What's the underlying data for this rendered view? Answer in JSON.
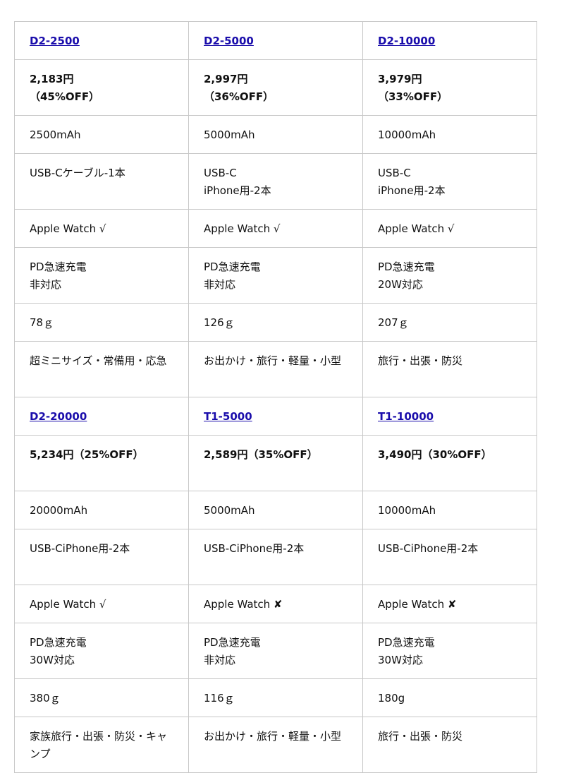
{
  "groups": [
    {
      "products": [
        {
          "name": "D2-2500",
          "price": "2,183円\n（45%OFF）",
          "capacity": "2500mAh",
          "cable": "USB-Cケーブル-1本",
          "watch": "Apple Watch √",
          "pd": "PD急速充電\n非対応",
          "weight": "78ｇ",
          "use": "超ミニサイズ・常備用・応急"
        },
        {
          "name": "D2-5000",
          "price": "2,997円\n（36%OFF）",
          "capacity": "5000mAh",
          "cable": "USB-C\niPhone用-2本",
          "watch": "Apple Watch √",
          "pd": "PD急速充電\n非対応",
          "weight": "126ｇ",
          "use": "お出かけ・旅行・軽量・小型"
        },
        {
          "name": "D2-10000",
          "price": "3,979円\n（33%OFF）",
          "capacity": "10000mAh",
          "cable": "USB-C\niPhone用-2本",
          "watch": "Apple Watch √",
          "pd": "PD急速充電\n20W対応",
          "weight": "207ｇ",
          "use": "旅行・出張・防災"
        }
      ]
    },
    {
      "products": [
        {
          "name": "D2-20000",
          "price": "5,234円（25%OFF）",
          "capacity": "20000mAh",
          "cable": "USB-CiPhone用-2本",
          "watch": "Apple Watch √",
          "pd": "PD急速充電\n30W対応",
          "weight": "380ｇ",
          "use": "家族旅行・出張・防災・キャンプ"
        },
        {
          "name": "T1-5000",
          "price": "2,589円（35%OFF）",
          "capacity": "5000mAh",
          "cable": "USB-CiPhone用-2本",
          "watch": "Apple Watch ✘",
          "pd": "PD急速充電\n非対応",
          "weight": "116ｇ",
          "use": "お出かけ・旅行・軽量・小型"
        },
        {
          "name": "T1-10000",
          "price": "3,490円（30%OFF）",
          "capacity": "10000mAh",
          "cable": "USB-CiPhone用-2本",
          "watch": "Apple Watch ✘",
          "pd": "PD急速充電\n30W対応",
          "weight": "180g",
          "use": "旅行・出張・防災"
        }
      ]
    }
  ],
  "colors": {
    "link": "#1a0dab",
    "border": "#c8c8c8"
  }
}
